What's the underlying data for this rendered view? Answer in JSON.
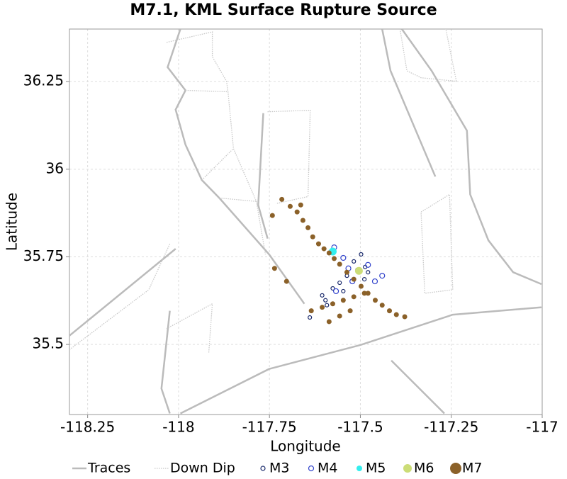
{
  "chart_data": {
    "type": "scatter",
    "title": "M7.1, KML Surface Rupture Source",
    "x_label": "Longitude",
    "y_label": "Latitude",
    "xlim": [
      -118.3,
      -117
    ],
    "ylim": [
      35.3,
      36.4
    ],
    "xticks": [
      -118.25,
      -118,
      -117.75,
      -117.5,
      -117.25,
      -117
    ],
    "yticks": [
      35.5,
      35.75,
      36,
      36.25
    ],
    "grid": true,
    "legend": "bottom",
    "series": [
      {
        "name": "Traces",
        "color": "#bbbbbb",
        "style": "line",
        "x": [
          -117.995,
          -118.03,
          -117.981,
          -118.008,
          -117.981,
          -117.936,
          -117.888,
          -117.751,
          -117.654,
          null,
          -118.3,
          -118.008,
          null,
          -117.995,
          -117.751,
          -117.498,
          -117.246,
          -117.002,
          null,
          -117.415,
          -117.269,
          null,
          -117.386,
          -117.304,
          -117.207,
          -117.198,
          -117.148,
          -117.08,
          -117.002,
          null,
          -117.44,
          -117.417,
          -117.294,
          null,
          -117.767,
          -117.781,
          -117.755,
          null,
          -118.024,
          -118.047,
          -118.024
        ],
        "y": [
          36.4,
          36.291,
          36.225,
          36.17,
          36.07,
          35.969,
          35.918,
          35.757,
          35.616,
          null,
          35.525,
          35.773,
          null,
          35.303,
          35.43,
          35.499,
          35.585,
          35.606,
          null,
          35.454,
          35.303,
          null,
          36.4,
          36.281,
          36.11,
          35.928,
          35.797,
          35.706,
          35.672,
          null,
          36.4,
          36.281,
          35.979,
          null,
          36.16,
          35.898,
          35.802,
          null,
          35.596,
          35.374,
          35.303
        ]
      },
      {
        "name": "Down Dip",
        "color": "#c8c8c8",
        "style": "dotted",
        "x": [
          -118.033,
          -117.907,
          -117.907,
          -117.868,
          -117.864,
          -117.849,
          -117.786,
          -117.761,
          null,
          -117.755,
          -117.638,
          -117.644,
          -117.732,
          null,
          -117.333,
          -117.255,
          -117.246,
          -117.323,
          -117.333,
          null,
          -117.391,
          -117.372,
          -117.333,
          -117.236,
          -117.265,
          null,
          -118.033,
          -117.907,
          -117.917,
          null,
          -118.3,
          -118.082,
          -118.024,
          null,
          -117.981,
          -117.864,
          null,
          -117.936,
          -117.849,
          null,
          -117.888,
          -117.786
        ],
        "y": [
          36.362,
          36.392,
          36.321,
          36.251,
          36.221,
          36.059,
          35.908,
          35.757,
          null,
          36.164,
          36.168,
          35.922,
          35.902,
          null,
          35.878,
          35.928,
          35.656,
          35.646,
          35.878,
          null,
          36.4,
          36.281,
          36.261,
          36.251,
          36.4,
          null,
          35.545,
          35.616,
          35.475,
          null,
          35.485,
          35.656,
          35.787,
          null,
          36.225,
          36.221,
          null,
          35.969,
          36.059,
          null,
          35.918,
          35.908
        ]
      },
      {
        "name": "M3",
        "color": "#1a2a6c",
        "style": "hollow",
        "x": [
          -117.605,
          -117.596,
          -117.576,
          -117.557,
          -117.537,
          -117.508,
          -117.489,
          -117.479,
          -117.518,
          -117.639,
          -117.592,
          -117.547,
          -117.498,
          -117.487
        ],
        "y": [
          35.64,
          35.626,
          35.66,
          35.676,
          35.696,
          35.713,
          35.686,
          35.706,
          35.737,
          35.577,
          35.612,
          35.652,
          35.757,
          35.721
        ]
      },
      {
        "name": "M4",
        "color": "#3344cc",
        "style": "hollow",
        "x": [
          -117.572,
          -117.547,
          -117.567,
          -117.46,
          -117.44,
          -117.533,
          -117.522,
          -117.479
        ],
        "y": [
          35.777,
          35.747,
          35.652,
          35.68,
          35.696,
          35.717,
          35.68,
          35.727
        ]
      },
      {
        "name": "M5",
        "color": "#33eeee",
        "style": "filled",
        "x": [
          -117.576
        ],
        "y": [
          35.765
        ]
      },
      {
        "name": "M6",
        "color": "#ccdd77",
        "style": "filled",
        "x": [
          -117.504
        ],
        "y": [
          35.71
        ]
      },
      {
        "name": "M7",
        "color": "#8b6129",
        "style": "filled",
        "x": [
          -117.716,
          -117.693,
          -117.674,
          -117.658,
          -117.644,
          -117.631,
          -117.615,
          -117.6,
          -117.586,
          -117.572,
          -117.557,
          -117.537,
          -117.518,
          -117.498,
          -117.479,
          -117.459,
          -117.44,
          -117.42,
          -117.401,
          -117.378,
          -117.635,
          -117.605,
          -117.576,
          -117.547,
          -117.518,
          -117.489,
          -117.586,
          -117.557,
          -117.528,
          -117.736,
          -117.703,
          -117.664,
          -117.742
        ],
        "y": [
          35.914,
          35.894,
          35.878,
          35.854,
          35.833,
          35.807,
          35.787,
          35.773,
          35.761,
          35.745,
          35.729,
          35.706,
          35.686,
          35.666,
          35.646,
          35.626,
          35.612,
          35.596,
          35.585,
          35.579,
          35.596,
          35.606,
          35.616,
          35.626,
          35.636,
          35.646,
          35.565,
          35.581,
          35.596,
          35.717,
          35.68,
          35.898,
          35.868
        ]
      }
    ]
  }
}
